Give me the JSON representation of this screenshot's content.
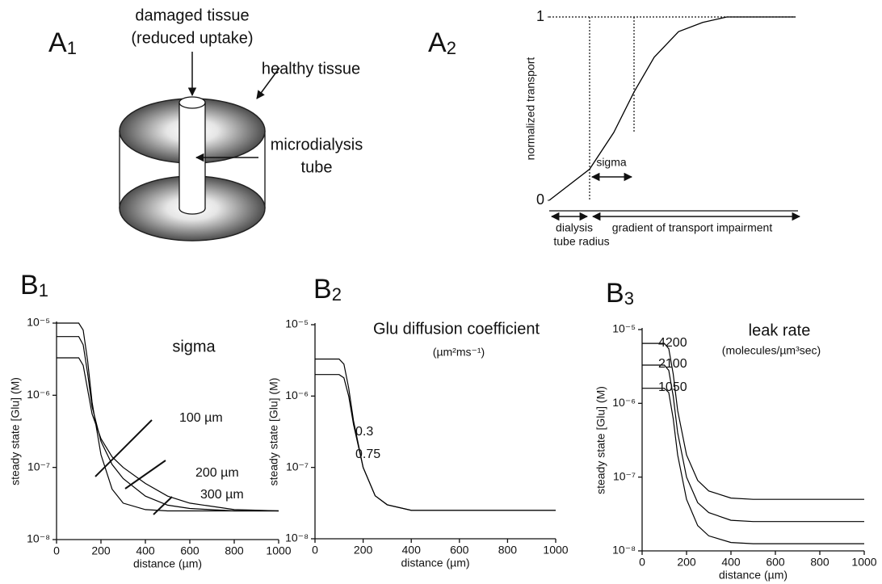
{
  "diagram": {
    "panel": {
      "letter": "A",
      "index": "1"
    },
    "labels": [
      "damaged tissue",
      "(reduced uptake)",
      "healthy tissue",
      "microdialysis",
      "tube"
    ]
  },
  "chart_data": [
    {
      "type": "line",
      "panel": {
        "letter": "A",
        "index": "2"
      },
      "y_label": "normalized transport",
      "x": [
        0,
        0.164,
        0.262,
        0.344,
        0.426,
        0.525,
        0.623,
        0.721,
        0.852,
        1
      ],
      "values": [
        0,
        0.17,
        0.37,
        0.59,
        0.78,
        0.92,
        0.97,
        1,
        1,
        1
      ],
      "color": "#000000",
      "xlim": [
        0,
        1
      ],
      "ylim": [
        0,
        1
      ],
      "yticks": [
        0,
        1
      ],
      "annotations": [
        "sigma",
        "dialysis",
        "tube radius",
        "gradient of transport impairment"
      ]
    },
    {
      "type": "line",
      "panel": {
        "letter": "B",
        "index": "1"
      },
      "title": "sigma",
      "x_label": "distance (µm)",
      "y_label": "steady state [Glu] (M)",
      "log_y": true,
      "x": [
        0,
        100,
        120,
        140,
        160,
        200,
        250,
        300,
        400,
        500,
        600,
        800,
        1000
      ],
      "series": [
        {
          "name": "100 µm",
          "color": "#000000",
          "values": [
            1e-05,
            1e-05,
            8e-06,
            3e-06,
            8e-07,
            1.5e-07,
            5e-08,
            3.2e-08,
            2.6e-08,
            2.5e-08,
            2.5e-08,
            2.5e-08,
            2.5e-08
          ]
        },
        {
          "name": "200 µm",
          "color": "#000000",
          "values": [
            6.5e-06,
            6.5e-06,
            5e-06,
            2e-06,
            7e-07,
            2.3e-07,
            1.1e-07,
            7e-08,
            4e-08,
            3e-08,
            2.7e-08,
            2.5e-08,
            2.5e-08
          ]
        },
        {
          "name": "300 µm",
          "color": "#000000",
          "values": [
            3.3e-06,
            3.3e-06,
            2.6e-06,
            1.2e-06,
            5.5e-07,
            2.5e-07,
            1.4e-07,
            1e-07,
            6e-08,
            4e-08,
            3.2e-08,
            2.6e-08,
            2.5e-08
          ]
        }
      ],
      "xlim": [
        0,
        1000
      ],
      "xticks": [
        0,
        200,
        400,
        600,
        800,
        1000
      ],
      "ylim": [
        1e-08,
        1e-05
      ],
      "yticks": [
        {
          "value": 1e-08,
          "label": "10⁻⁸"
        },
        {
          "value": 1e-07,
          "label": "10⁻⁷"
        },
        {
          "value": 1e-06,
          "label": "10⁻⁶"
        },
        {
          "value": 1e-05,
          "label": "10⁻⁵"
        }
      ]
    },
    {
      "type": "line",
      "panel": {
        "letter": "B",
        "index": "2"
      },
      "title": "Glu diffusion coefficient",
      "subtitle": "(µm²ms⁻¹)",
      "x_label": "distance (µm)",
      "y_label": "steady state [Glu] (M)",
      "log_y": true,
      "x": [
        0,
        100,
        120,
        140,
        160,
        200,
        250,
        300,
        400,
        500,
        600,
        800,
        1000
      ],
      "series": [
        {
          "name": "0.3",
          "color": "#000000",
          "values": [
            3.3e-06,
            3.3e-06,
            2.8e-06,
            1.3e-06,
            4.5e-07,
            1e-07,
            4e-08,
            3e-08,
            2.5e-08,
            2.5e-08,
            2.5e-08,
            2.5e-08,
            2.5e-08
          ]
        },
        {
          "name": "0.75",
          "color": "#000000",
          "values": [
            2e-06,
            2e-06,
            1.8e-06,
            1e-06,
            4e-07,
            1e-07,
            4e-08,
            3e-08,
            2.5e-08,
            2.5e-08,
            2.5e-08,
            2.5e-08,
            2.5e-08
          ]
        }
      ],
      "xlim": [
        0,
        1000
      ],
      "xticks": [
        0,
        200,
        400,
        600,
        800,
        1000
      ],
      "ylim": [
        1e-08,
        1e-05
      ],
      "yticks": [
        {
          "value": 1e-08,
          "label": "10⁻⁸"
        },
        {
          "value": 1e-07,
          "label": "10⁻⁷"
        },
        {
          "value": 1e-06,
          "label": "10⁻⁶"
        },
        {
          "value": 1e-05,
          "label": "10⁻⁵"
        }
      ]
    },
    {
      "type": "line",
      "panel": {
        "letter": "B",
        "index": "3"
      },
      "title": "leak rate",
      "subtitle": "(molecules/µm³sec)",
      "x_label": "distance (µm)",
      "y_label": "steady state [Glu] (M)",
      "log_y": true,
      "x": [
        0,
        100,
        120,
        140,
        160,
        200,
        250,
        300,
        400,
        500,
        600,
        800,
        1000
      ],
      "series": [
        {
          "name": "4200",
          "color": "#000000",
          "values": [
            6.5e-06,
            6.5e-06,
            5.5e-06,
            2.5e-06,
            8e-07,
            2e-07,
            9e-08,
            6.5e-08,
            5.2e-08,
            5e-08,
            5e-08,
            5e-08,
            5e-08
          ]
        },
        {
          "name": "2100",
          "color": "#000000",
          "values": [
            3.3e-06,
            3.3e-06,
            2.8e-06,
            1.25e-06,
            4e-07,
            1e-07,
            4.5e-08,
            3.3e-08,
            2.6e-08,
            2.5e-08,
            2.5e-08,
            2.5e-08,
            2.5e-08
          ]
        },
        {
          "name": "1050",
          "color": "#000000",
          "values": [
            1.6e-06,
            1.6e-06,
            1.4e-06,
            6.2e-07,
            2e-07,
            5e-08,
            2.2e-08,
            1.6e-08,
            1.3e-08,
            1.25e-08,
            1.25e-08,
            1.25e-08,
            1.25e-08
          ]
        }
      ],
      "xlim": [
        0,
        1000
      ],
      "xticks": [
        0,
        200,
        400,
        600,
        800,
        1000
      ],
      "ylim": [
        1e-08,
        1e-05
      ],
      "yticks": [
        {
          "value": 1e-08,
          "label": "10⁻⁸"
        },
        {
          "value": 1e-07,
          "label": "10⁻⁷"
        },
        {
          "value": 1e-06,
          "label": "10⁻⁶"
        },
        {
          "value": 1e-05,
          "label": "10⁻⁵"
        }
      ]
    }
  ]
}
